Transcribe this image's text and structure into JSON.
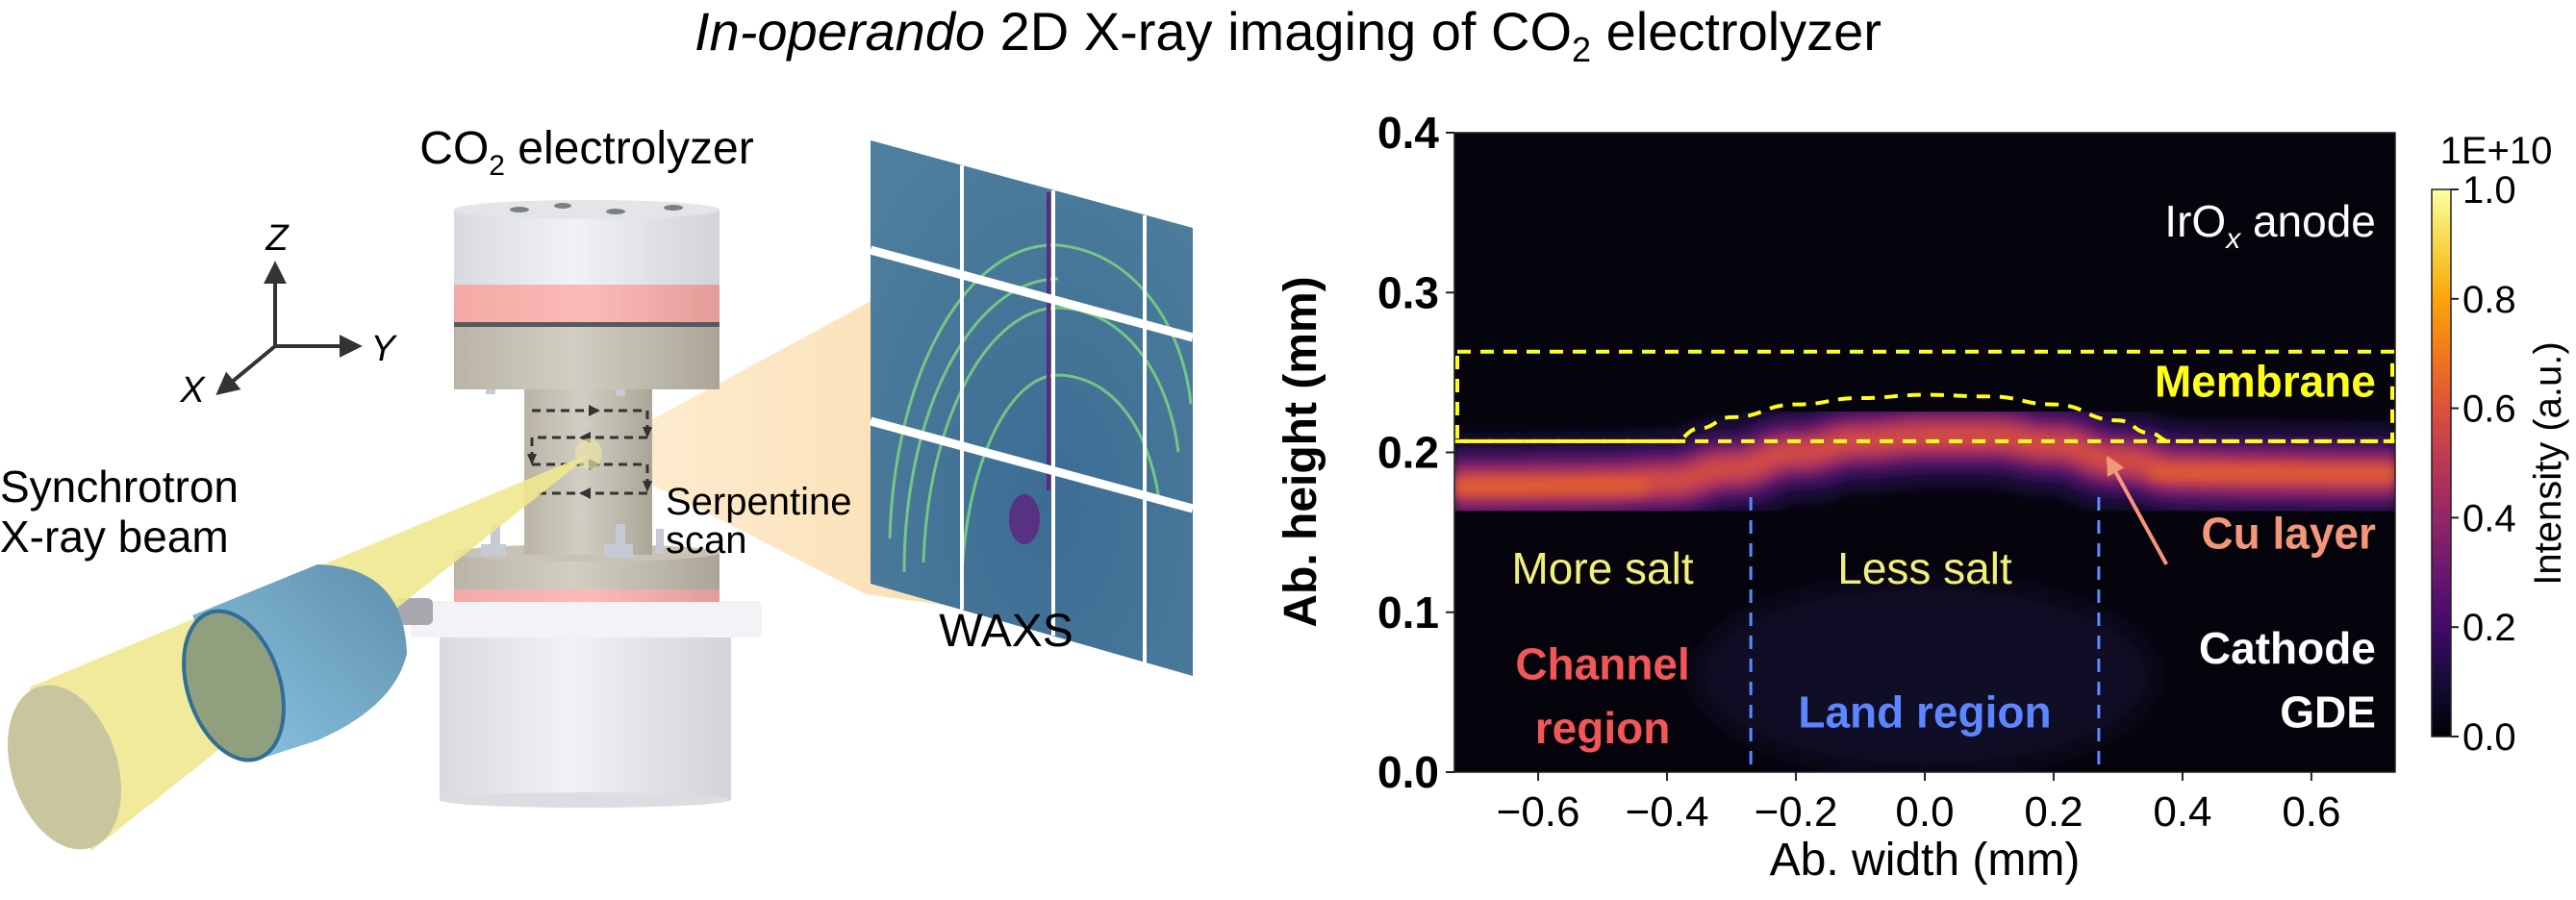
{
  "title": {
    "italic": "In-operando",
    "rest_before_sub": " 2D X-ray imaging of CO",
    "subscript": "2",
    "rest_after_sub": " electrolyzer"
  },
  "schematic": {
    "device_label": {
      "main": "CO",
      "subscript": "2",
      "rest": " electrolyzer"
    },
    "axes": {
      "x": "X",
      "y": "Y",
      "z": "Z"
    },
    "beam_label": [
      "Synchrotron",
      "X-ray beam"
    ],
    "scan_label": [
      "Serpentine",
      "scan"
    ],
    "detector_label": "WAXS",
    "colors": {
      "beam": "#efe88f",
      "collimator": "#6aa8cc",
      "cell_body": "#c9c4b7",
      "cell_white": "#e9eaee",
      "cell_pink": "#f6b2ae",
      "scatter_cone": "#fbdca8",
      "detector": "#4f7f9c",
      "rings": "#7fe07c"
    }
  },
  "chart_data": {
    "type": "heatmap",
    "title": "",
    "xlabel": "Ab. width (mm)",
    "ylabel": "Ab. height (mm)",
    "xlim": [
      -0.73,
      0.73
    ],
    "ylim": [
      0.0,
      0.4
    ],
    "xticks": [
      -0.6,
      -0.4,
      -0.2,
      0.0,
      0.2,
      0.4,
      0.6
    ],
    "xtick_labels": [
      "−0.6",
      "−0.4",
      "−0.2",
      "0.0",
      "0.2",
      "0.4",
      "0.6"
    ],
    "yticks": [
      0.0,
      0.1,
      0.2,
      0.3,
      0.4
    ],
    "ytick_labels": [
      "0.0",
      "0.1",
      "0.2",
      "0.3",
      "0.4"
    ],
    "colormap": "inferno",
    "colorbar": {
      "label": "Intensity (a.u.)",
      "multiplier": "1E+10",
      "range": [
        0.0,
        1.0
      ],
      "ticks": [
        0.0,
        0.2,
        0.4,
        0.6,
        0.8,
        1.0
      ],
      "tick_labels": [
        "0.0",
        "0.2",
        "0.4",
        "0.6",
        "0.8",
        "1.0"
      ]
    },
    "cu_layer_band": {
      "description": "bright Cu layer band, centre height vs width",
      "x": [
        -0.73,
        -0.5,
        -0.4,
        -0.3,
        -0.2,
        -0.1,
        0.0,
        0.1,
        0.2,
        0.3,
        0.4,
        0.5,
        0.73
      ],
      "y": [
        0.179,
        0.18,
        0.182,
        0.19,
        0.2,
        0.207,
        0.21,
        0.21,
        0.205,
        0.195,
        0.188,
        0.187,
        0.186
      ],
      "peak_intensity": 0.62
    },
    "membrane_box": {
      "x": [
        -0.73,
        0.73
      ],
      "y": [
        0.207,
        0.263
      ],
      "color": "#ffff1a"
    },
    "membrane_curve": {
      "x": [
        -0.73,
        -0.39,
        -0.35,
        -0.3,
        -0.2,
        -0.1,
        0.0,
        0.1,
        0.2,
        0.3,
        0.35,
        0.38,
        0.73
      ],
      "y": [
        0.207,
        0.207,
        0.215,
        0.222,
        0.23,
        0.234,
        0.236,
        0.235,
        0.23,
        0.22,
        0.212,
        0.207,
        0.207
      ],
      "color": "#ffff1a"
    },
    "region_dividers": {
      "x": [
        -0.27,
        0.27
      ],
      "y_top": 0.172,
      "color": "#5b8cff"
    },
    "annotations": [
      {
        "text_main": "IrO",
        "text_sub": "x",
        "text_rest": " anode",
        "color": "#ffffff",
        "x": 0.7,
        "y": 0.335,
        "anchor": "end"
      },
      {
        "text": "Membrane",
        "color": "#ffff1a",
        "x": 0.7,
        "y": 0.235,
        "anchor": "end",
        "bold": true
      },
      {
        "text": "Cu layer",
        "color": "#f4967a",
        "x": 0.7,
        "y": 0.14,
        "anchor": "end",
        "bold": true
      },
      {
        "text": "More salt",
        "color": "#f2f07a",
        "x": -0.5,
        "y": 0.118,
        "anchor": "middle"
      },
      {
        "text": "Less salt",
        "color": "#f2f07a",
        "x": 0.0,
        "y": 0.118,
        "anchor": "middle"
      },
      {
        "text": "Channel",
        "color": "#f25656",
        "x": -0.5,
        "y": 0.058,
        "anchor": "middle",
        "bold": true
      },
      {
        "text": "region",
        "color": "#f25656",
        "x": -0.5,
        "y": 0.018,
        "anchor": "middle",
        "bold": true
      },
      {
        "text": "Land region",
        "color": "#5b86ff",
        "x": 0.0,
        "y": 0.028,
        "anchor": "middle",
        "bold": true
      },
      {
        "text": "Cathode",
        "color": "#ffffff",
        "x": 0.7,
        "y": 0.068,
        "anchor": "end",
        "bold": true
      },
      {
        "text": "GDE",
        "color": "#ffffff",
        "x": 0.7,
        "y": 0.028,
        "anchor": "end",
        "bold": true
      }
    ],
    "arrow": {
      "from": [
        0.375,
        0.13
      ],
      "to": [
        0.285,
        0.196
      ],
      "color": "#f4967a"
    }
  }
}
